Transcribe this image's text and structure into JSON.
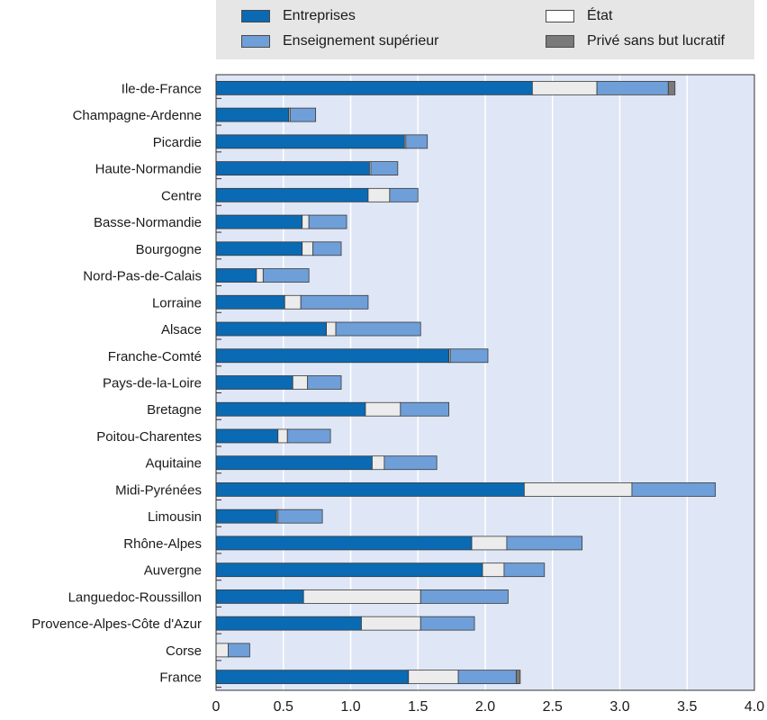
{
  "colors": {
    "enterprises": "#0a6ab3",
    "state": "#ececec",
    "higher_education": "#6f9fd8",
    "private_nonprofit": "#7a7a7a",
    "plot_background": "#dfe6f5",
    "legend_background": "#e6e6e6"
  },
  "legend": [
    {
      "label": "Entreprises",
      "color": "#0a6ab3"
    },
    {
      "label": "Enseignement supérieur",
      "color": "#6f9fd8"
    },
    {
      "label": "État",
      "color": "#ececec"
    },
    {
      "label": "Privé sans but lucratif",
      "color": "#7a7a7a"
    }
  ],
  "chart_data": {
    "type": "bar",
    "orientation": "horizontal",
    "stacked": true,
    "title": "",
    "xlabel": "",
    "ylabel": "",
    "xlim": [
      0,
      4.0
    ],
    "xticks": [
      "0",
      "0.5",
      "1.0",
      "1.5",
      "2.0",
      "2.5",
      "3.0",
      "3.5",
      "4.0"
    ],
    "grid": true,
    "legend_position": "top",
    "categories": [
      "Ile-de-France",
      "Champagne-Ardenne",
      "Picardie",
      "Haute-Normandie",
      "Centre",
      "Basse-Normandie",
      "Bourgogne",
      "Nord-Pas-de-Calais",
      "Lorraine",
      "Alsace",
      "Franche-Comté",
      "Pays-de-la-Loire",
      "Bretagne",
      "Poitou-Charentes",
      "Aquitaine",
      "Midi-Pyrénées",
      "Limousin",
      "Rhône-Alpes",
      "Auvergne",
      "Languedoc-Roussillon",
      "Provence-Alpes-Côte d'Azur",
      "Corse",
      "France"
    ],
    "series": [
      {
        "name": "Entreprises",
        "color": "#0a6ab3",
        "values": [
          2.35,
          0.54,
          1.4,
          1.14,
          1.13,
          0.64,
          0.64,
          0.3,
          0.51,
          0.82,
          1.73,
          0.57,
          1.11,
          0.46,
          1.16,
          2.29,
          0.45,
          1.9,
          1.98,
          0.65,
          1.08,
          0.0,
          1.43
        ]
      },
      {
        "name": "État",
        "color": "#ececec",
        "values": [
          0.48,
          0.01,
          0.01,
          0.01,
          0.16,
          0.05,
          0.08,
          0.05,
          0.12,
          0.07,
          0.01,
          0.11,
          0.26,
          0.07,
          0.09,
          0.8,
          0.01,
          0.26,
          0.16,
          0.87,
          0.44,
          0.09,
          0.37
        ]
      },
      {
        "name": "Enseignement supérieur",
        "color": "#6f9fd8",
        "values": [
          0.53,
          0.19,
          0.16,
          0.2,
          0.21,
          0.28,
          0.21,
          0.34,
          0.5,
          0.63,
          0.28,
          0.25,
          0.36,
          0.32,
          0.39,
          0.62,
          0.33,
          0.56,
          0.3,
          0.65,
          0.4,
          0.16,
          0.43
        ]
      },
      {
        "name": "Privé sans but lucratif",
        "color": "#7a7a7a",
        "values": [
          0.05,
          0.0,
          0.0,
          0.0,
          0.0,
          0.0,
          0.0,
          0.0,
          0.0,
          0.0,
          0.0,
          0.0,
          0.0,
          0.0,
          0.0,
          0.0,
          0.0,
          0.0,
          0.0,
          0.0,
          0.0,
          0.0,
          0.03
        ]
      }
    ]
  }
}
